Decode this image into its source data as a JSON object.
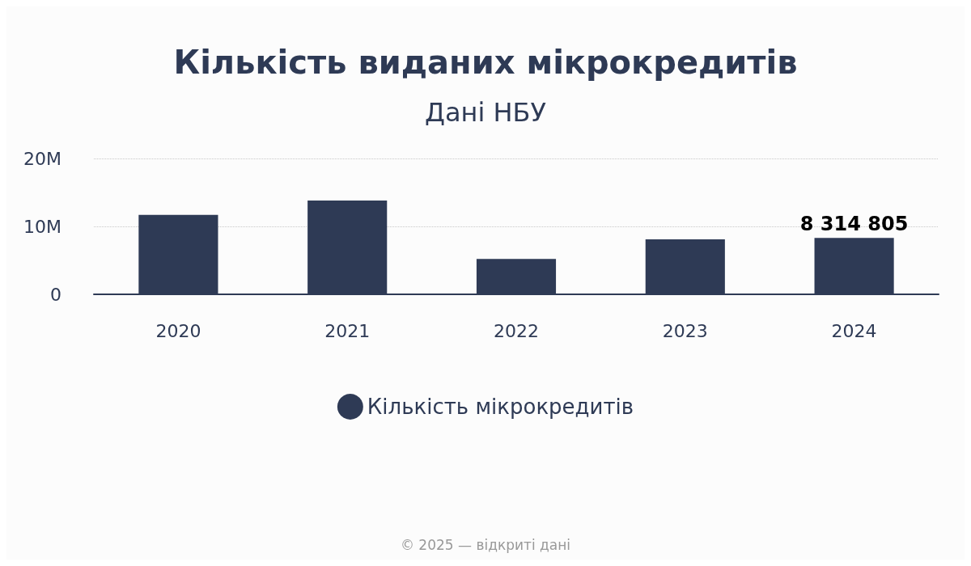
{
  "chart_data": {
    "type": "bar",
    "title": "Кількість виданих мікрокредитів",
    "subtitle": "Дані НБУ",
    "categories": [
      "2020",
      "2021",
      "2022",
      "2023",
      "2024"
    ],
    "series": [
      {
        "name": "Кількість мікрокредитів",
        "color": "#2e3a55",
        "values": [
          11700000,
          13800000,
          5200000,
          8100000,
          8314805
        ],
        "value_labels": [
          null,
          null,
          null,
          null,
          "8 314 805"
        ]
      }
    ],
    "ylim": [
      0,
      20000000
    ],
    "yticks": [
      0,
      {
        "value": 10000000,
        "label": "10M"
      },
      {
        "value": 20000000,
        "label": "20M"
      }
    ],
    "grid": "y",
    "legend": "bottom",
    "annotations": [
      "© 2025 — відкриті дані"
    ]
  }
}
